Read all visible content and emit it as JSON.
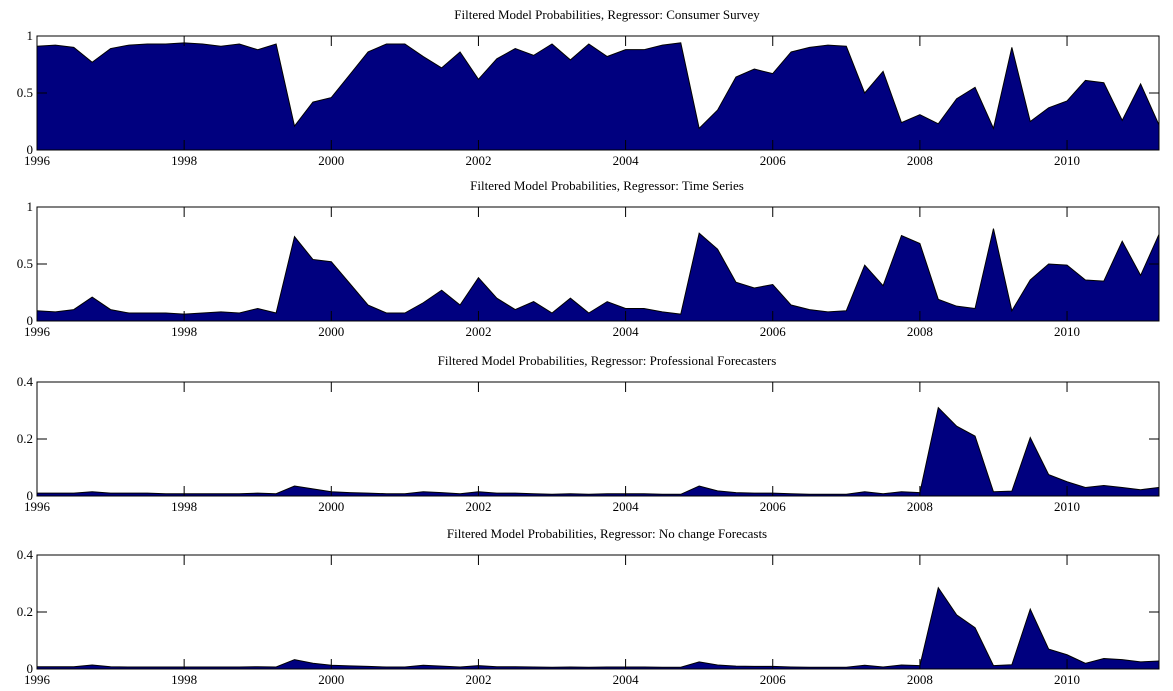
{
  "chart_data": [
    {
      "type": "area",
      "title": "Filtered Model Probabilities, Regressor: Consumer Survey",
      "color": "#00007f",
      "x": [
        1996,
        1996.25,
        1996.5,
        1996.75,
        1997,
        1997.25,
        1997.5,
        1997.75,
        1998,
        1998.25,
        1998.5,
        1998.75,
        1999,
        1999.25,
        1999.5,
        1999.75,
        2000,
        2000.25,
        2000.5,
        2000.75,
        2001,
        2001.25,
        2001.5,
        2001.75,
        2002,
        2002.25,
        2002.5,
        2002.75,
        2003,
        2003.25,
        2003.5,
        2003.75,
        2004,
        2004.25,
        2004.5,
        2004.75,
        2005,
        2005.25,
        2005.5,
        2005.75,
        2006,
        2006.25,
        2006.5,
        2006.75,
        2007,
        2007.25,
        2007.5,
        2007.75,
        2008,
        2008.25,
        2008.5,
        2008.75,
        2009,
        2009.25,
        2009.5,
        2009.75,
        2010,
        2010.25,
        2010.5,
        2010.75,
        2011,
        2011.25
      ],
      "values": [
        0.91,
        0.92,
        0.9,
        0.77,
        0.89,
        0.92,
        0.93,
        0.93,
        0.94,
        0.93,
        0.91,
        0.93,
        0.88,
        0.93,
        0.21,
        0.42,
        0.46,
        0.66,
        0.86,
        0.93,
        0.93,
        0.82,
        0.72,
        0.86,
        0.62,
        0.8,
        0.89,
        0.83,
        0.93,
        0.79,
        0.93,
        0.82,
        0.88,
        0.88,
        0.92,
        0.94,
        0.19,
        0.35,
        0.64,
        0.71,
        0.67,
        0.86,
        0.9,
        0.92,
        0.91,
        0.5,
        0.69,
        0.24,
        0.31,
        0.23,
        0.45,
        0.55,
        0.19,
        0.9,
        0.25,
        0.37,
        0.43,
        0.61,
        0.59,
        0.26,
        0.58,
        0.22
      ],
      "xlim": [
        1996,
        2011.25
      ],
      "xticks": [
        1996,
        1998,
        2000,
        2002,
        2004,
        2006,
        2008,
        2010
      ],
      "ylim": [
        0,
        1
      ],
      "yticks": [
        0,
        0.5,
        1
      ]
    },
    {
      "type": "area",
      "title": "Filtered Model Probabilities, Regressor: Time Series",
      "color": "#00007f",
      "x": [
        1996,
        1996.25,
        1996.5,
        1996.75,
        1997,
        1997.25,
        1997.5,
        1997.75,
        1998,
        1998.25,
        1998.5,
        1998.75,
        1999,
        1999.25,
        1999.5,
        1999.75,
        2000,
        2000.25,
        2000.5,
        2000.75,
        2001,
        2001.25,
        2001.5,
        2001.75,
        2002,
        2002.25,
        2002.5,
        2002.75,
        2003,
        2003.25,
        2003.5,
        2003.75,
        2004,
        2004.25,
        2004.5,
        2004.75,
        2005,
        2005.25,
        2005.5,
        2005.75,
        2006,
        2006.25,
        2006.5,
        2006.75,
        2007,
        2007.25,
        2007.5,
        2007.75,
        2008,
        2008.25,
        2008.5,
        2008.75,
        2009,
        2009.25,
        2009.5,
        2009.75,
        2010,
        2010.25,
        2010.5,
        2010.75,
        2011,
        2011.25
      ],
      "values": [
        0.09,
        0.08,
        0.1,
        0.21,
        0.1,
        0.07,
        0.07,
        0.07,
        0.06,
        0.07,
        0.08,
        0.07,
        0.11,
        0.07,
        0.74,
        0.54,
        0.52,
        0.33,
        0.14,
        0.07,
        0.07,
        0.16,
        0.27,
        0.14,
        0.38,
        0.2,
        0.1,
        0.17,
        0.07,
        0.2,
        0.07,
        0.17,
        0.11,
        0.11,
        0.08,
        0.06,
        0.77,
        0.63,
        0.34,
        0.29,
        0.32,
        0.14,
        0.1,
        0.08,
        0.09,
        0.49,
        0.31,
        0.75,
        0.68,
        0.19,
        0.13,
        0.11,
        0.81,
        0.09,
        0.36,
        0.5,
        0.49,
        0.36,
        0.35,
        0.7,
        0.4,
        0.76
      ],
      "xlim": [
        1996,
        2011.25
      ],
      "xticks": [
        1996,
        1998,
        2000,
        2002,
        2004,
        2006,
        2008,
        2010
      ],
      "ylim": [
        0,
        1
      ],
      "yticks": [
        0,
        0.5,
        1
      ]
    },
    {
      "type": "area",
      "title": "Filtered Model Probabilities, Regressor: Professional Forecasters",
      "color": "#00007f",
      "x": [
        1996,
        1996.25,
        1996.5,
        1996.75,
        1997,
        1997.25,
        1997.5,
        1997.75,
        1998,
        1998.25,
        1998.5,
        1998.75,
        1999,
        1999.25,
        1999.5,
        1999.75,
        2000,
        2000.25,
        2000.5,
        2000.75,
        2001,
        2001.25,
        2001.5,
        2001.75,
        2002,
        2002.25,
        2002.5,
        2002.75,
        2003,
        2003.25,
        2003.5,
        2003.75,
        2004,
        2004.25,
        2004.5,
        2004.75,
        2005,
        2005.25,
        2005.5,
        2005.75,
        2006,
        2006.25,
        2006.5,
        2006.75,
        2007,
        2007.25,
        2007.5,
        2007.75,
        2008,
        2008.25,
        2008.5,
        2008.75,
        2009,
        2009.25,
        2009.5,
        2009.75,
        2010,
        2010.25,
        2010.5,
        2010.75,
        2011,
        2011.25
      ],
      "values": [
        0.01,
        0.01,
        0.01,
        0.015,
        0.01,
        0.01,
        0.01,
        0.008,
        0.008,
        0.008,
        0.008,
        0.008,
        0.01,
        0.008,
        0.035,
        0.025,
        0.015,
        0.012,
        0.01,
        0.008,
        0.008,
        0.015,
        0.012,
        0.008,
        0.015,
        0.01,
        0.01,
        0.008,
        0.006,
        0.008,
        0.006,
        0.008,
        0.008,
        0.008,
        0.006,
        0.006,
        0.035,
        0.018,
        0.012,
        0.01,
        0.01,
        0.008,
        0.006,
        0.006,
        0.006,
        0.015,
        0.008,
        0.015,
        0.012,
        0.31,
        0.245,
        0.21,
        0.015,
        0.017,
        0.205,
        0.075,
        0.05,
        0.03,
        0.037,
        0.03,
        0.022,
        0.03
      ],
      "xlim": [
        1996,
        2011.25
      ],
      "xticks": [
        1996,
        1998,
        2000,
        2002,
        2004,
        2006,
        2008,
        2010
      ],
      "ylim": [
        0,
        0.4
      ],
      "yticks": [
        0,
        0.2,
        0.4
      ]
    },
    {
      "type": "area",
      "title": "Filtered Model Probabilities, Regressor: No change Forecasts",
      "color": "#00007f",
      "x": [
        1996,
        1996.25,
        1996.5,
        1996.75,
        1997,
        1997.25,
        1997.5,
        1997.75,
        1998,
        1998.25,
        1998.5,
        1998.75,
        1999,
        1999.25,
        1999.5,
        1999.75,
        2000,
        2000.25,
        2000.5,
        2000.75,
        2001,
        2001.25,
        2001.5,
        2001.75,
        2002,
        2002.25,
        2002.5,
        2002.75,
        2003,
        2003.25,
        2003.5,
        2003.75,
        2004,
        2004.25,
        2004.5,
        2004.75,
        2005,
        2005.25,
        2005.5,
        2005.75,
        2006,
        2006.25,
        2006.5,
        2006.75,
        2007,
        2007.25,
        2007.5,
        2007.75,
        2008,
        2008.25,
        2008.5,
        2008.75,
        2009,
        2009.25,
        2009.5,
        2009.75,
        2010,
        2010.25,
        2010.5,
        2010.75,
        2011,
        2011.25
      ],
      "values": [
        0.008,
        0.008,
        0.008,
        0.014,
        0.008,
        0.007,
        0.007,
        0.007,
        0.007,
        0.007,
        0.007,
        0.007,
        0.008,
        0.007,
        0.033,
        0.02,
        0.013,
        0.011,
        0.009,
        0.007,
        0.007,
        0.013,
        0.01,
        0.007,
        0.012,
        0.008,
        0.008,
        0.007,
        0.006,
        0.007,
        0.006,
        0.007,
        0.007,
        0.007,
        0.006,
        0.006,
        0.025,
        0.014,
        0.01,
        0.009,
        0.009,
        0.007,
        0.006,
        0.006,
        0.006,
        0.013,
        0.007,
        0.014,
        0.012,
        0.285,
        0.19,
        0.145,
        0.012,
        0.015,
        0.21,
        0.07,
        0.05,
        0.02,
        0.037,
        0.033,
        0.025,
        0.028
      ],
      "xlim": [
        1996,
        2011.25
      ],
      "xticks": [
        1996,
        1998,
        2000,
        2002,
        2004,
        2006,
        2008,
        2010
      ],
      "ylim": [
        0,
        0.4
      ],
      "yticks": [
        0,
        0.2,
        0.4
      ]
    }
  ]
}
